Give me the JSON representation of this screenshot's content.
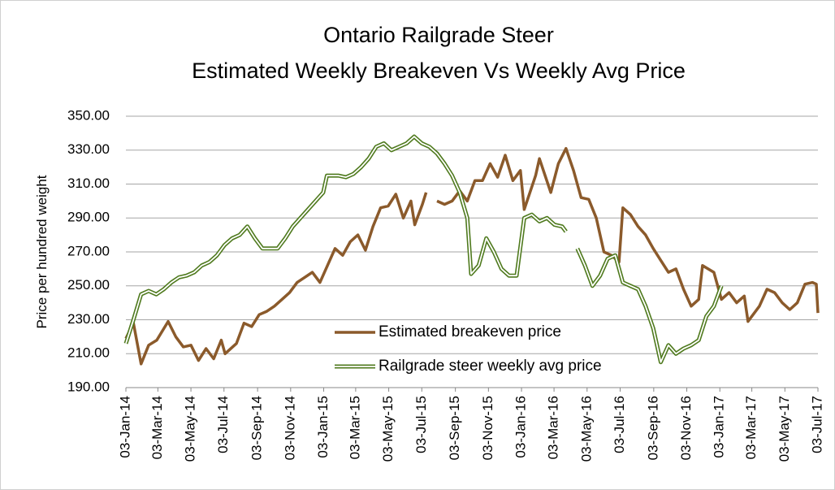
{
  "chart_data": {
    "type": "line",
    "title": [
      "Ontario Railgrade Steer",
      "Estimated Weekly Breakeven Vs Weekly Avg Price"
    ],
    "ylabel": "Price per hundred weight",
    "ylim": [
      190,
      350
    ],
    "yticks": [
      {
        "value": 190,
        "label": "190.00"
      },
      {
        "value": 210,
        "label": "210.00"
      },
      {
        "value": 230,
        "label": "230.00"
      },
      {
        "value": 250,
        "label": "250.00"
      },
      {
        "value": 270,
        "label": "270.00"
      },
      {
        "value": 290,
        "label": "290.00"
      },
      {
        "value": 310,
        "label": "310.00"
      },
      {
        "value": 330,
        "label": "330.00"
      },
      {
        "value": 350,
        "label": "350.00"
      }
    ],
    "xlim": [
      "2014-01-03",
      "2017-07-03"
    ],
    "xticks": [
      {
        "value": "2014-01-03",
        "label": "03-Jan-14"
      },
      {
        "value": "2014-03-03",
        "label": "03-Mar-14"
      },
      {
        "value": "2014-05-03",
        "label": "03-May-14"
      },
      {
        "value": "2014-07-03",
        "label": "03-Jul-14"
      },
      {
        "value": "2014-09-03",
        "label": "03-Sep-14"
      },
      {
        "value": "2014-11-03",
        "label": "03-Nov-14"
      },
      {
        "value": "2015-01-03",
        "label": "03-Jan-15"
      },
      {
        "value": "2015-03-03",
        "label": "03-Mar-15"
      },
      {
        "value": "2015-05-03",
        "label": "03-May-15"
      },
      {
        "value": "2015-07-03",
        "label": "03-Jul-15"
      },
      {
        "value": "2015-09-03",
        "label": "03-Sep-15"
      },
      {
        "value": "2015-11-03",
        "label": "03-Nov-15"
      },
      {
        "value": "2016-01-03",
        "label": "03-Jan-16"
      },
      {
        "value": "2016-03-03",
        "label": "03-Mar-16"
      },
      {
        "value": "2016-05-03",
        "label": "03-May-16"
      },
      {
        "value": "2016-07-03",
        "label": "03-Jul-16"
      },
      {
        "value": "2016-09-03",
        "label": "03-Sep-16"
      },
      {
        "value": "2016-11-03",
        "label": "03-Nov-16"
      },
      {
        "value": "2017-01-03",
        "label": "03-Jan-17"
      },
      {
        "value": "2017-03-03",
        "label": "03-Mar-17"
      },
      {
        "value": "2017-05-03",
        "label": "03-May-17"
      },
      {
        "value": "2017-07-03",
        "label": "03-Jul-17"
      }
    ],
    "grid": true,
    "legend": "center",
    "series": [
      {
        "name": "Estimated breakeven price",
        "color": "#8b5a2b",
        "style": "solid",
        "x": [
          "2014-01-03",
          "2014-01-17",
          "2014-01-31",
          "2014-02-14",
          "2014-03-01",
          "2014-03-22",
          "2014-04-05",
          "2014-04-19",
          "2014-05-03",
          "2014-05-17",
          "2014-05-31",
          "2014-06-14",
          "2014-06-28",
          "2014-07-05",
          "2014-07-26",
          "2014-08-09",
          "2014-08-23",
          "2014-09-06",
          "2014-09-20",
          "2014-10-04",
          "2014-10-18",
          "2014-11-01",
          "2014-11-15",
          "2014-11-29",
          "2014-12-13",
          "2014-12-27",
          "2015-01-10",
          "2015-01-24",
          "2015-02-07",
          "2015-02-21",
          "2015-03-07",
          "2015-03-21",
          "2015-04-04",
          "2015-04-18",
          "2015-05-02",
          "2015-05-16",
          "2015-05-30",
          "2015-06-13",
          "2015-06-20",
          "2015-07-04",
          "2015-07-11",
          "2015-07-24",
          "2015-07-31",
          "2015-08-14",
          "2015-08-28",
          "2015-09-11",
          "2015-09-25",
          "2015-10-09",
          "2015-10-23",
          "2015-11-06",
          "2015-11-20",
          "2015-12-04",
          "2015-12-18",
          "2016-01-01",
          "2016-01-08",
          "2016-01-29",
          "2016-02-05",
          "2016-02-26",
          "2016-03-11",
          "2016-03-25",
          "2016-04-08",
          "2016-04-22",
          "2016-05-06",
          "2016-05-20",
          "2016-06-03",
          "2016-06-17",
          "2016-07-01",
          "2016-07-08",
          "2016-07-22",
          "2016-08-05",
          "2016-08-19",
          "2016-09-02",
          "2016-09-16",
          "2016-09-30",
          "2016-10-14",
          "2016-10-28",
          "2016-11-11",
          "2016-11-25",
          "2016-12-02",
          "2016-12-23",
          "2017-01-06",
          "2017-01-20",
          "2017-02-03",
          "2017-02-17",
          "2017-02-24",
          "2017-03-17",
          "2017-03-31",
          "2017-04-14",
          "2017-04-28",
          "2017-05-12",
          "2017-05-26",
          "2017-06-09",
          "2017-06-23",
          "2017-06-30",
          "2017-07-03"
        ],
        "values": [
          219,
          228,
          204,
          215,
          218,
          229,
          220,
          214,
          215,
          206,
          213,
          207,
          218,
          210,
          216,
          228,
          226,
          233,
          235,
          238,
          242,
          246,
          252,
          255,
          258,
          252,
          262,
          272,
          268,
          276,
          280,
          271,
          285,
          296,
          297,
          304,
          290,
          300,
          286,
          298,
          305,
          null,
          300,
          298,
          300,
          306,
          300,
          312,
          312,
          322,
          314,
          327,
          312,
          318,
          295,
          315,
          325,
          305,
          322,
          331,
          318,
          302,
          301,
          290,
          270,
          268,
          264,
          296,
          292,
          285,
          280,
          272,
          265,
          258,
          260,
          248,
          238,
          242,
          262,
          258,
          242,
          246,
          240,
          244,
          229,
          238,
          248,
          246,
          240,
          236,
          240,
          251,
          252,
          251,
          234
        ]
      },
      {
        "name": "Railgrade steer weekly avg price",
        "color": "#4f7a1e",
        "style": "double",
        "x": [
          "2014-01-03",
          "2014-01-17",
          "2014-01-31",
          "2014-02-14",
          "2014-02-28",
          "2014-03-14",
          "2014-03-28",
          "2014-04-11",
          "2014-04-25",
          "2014-05-09",
          "2014-05-23",
          "2014-06-06",
          "2014-06-20",
          "2014-07-04",
          "2014-07-18",
          "2014-08-01",
          "2014-08-15",
          "2014-08-29",
          "2014-09-12",
          "2014-09-26",
          "2014-10-10",
          "2014-10-24",
          "2014-11-07",
          "2014-11-21",
          "2014-12-05",
          "2014-12-19",
          "2015-01-02",
          "2015-01-09",
          "2015-01-30",
          "2015-02-13",
          "2015-02-27",
          "2015-03-13",
          "2015-03-27",
          "2015-04-10",
          "2015-04-24",
          "2015-05-08",
          "2015-05-22",
          "2015-06-05",
          "2015-06-19",
          "2015-07-03",
          "2015-07-17",
          "2015-07-31",
          "2015-08-14",
          "2015-08-28",
          "2015-09-11",
          "2015-09-25",
          "2015-10-02",
          "2015-10-16",
          "2015-10-30",
          "2015-11-13",
          "2015-11-27",
          "2015-12-11",
          "2015-12-25",
          "2016-01-08",
          "2016-01-22",
          "2016-02-05",
          "2016-02-19",
          "2016-03-04",
          "2016-03-18",
          "2016-03-25",
          "2016-04-08",
          "2016-04-15",
          "2016-04-29",
          "2016-05-13",
          "2016-05-27",
          "2016-06-10",
          "2016-06-24",
          "2016-07-08",
          "2016-07-22",
          "2016-08-05",
          "2016-08-19",
          "2016-09-02",
          "2016-09-16",
          "2016-09-30",
          "2016-10-14",
          "2016-10-28",
          "2016-11-11",
          "2016-11-25",
          "2016-12-09",
          "2016-12-23",
          "2017-01-06"
        ],
        "values": [
          216,
          230,
          245,
          247,
          245,
          248,
          252,
          255,
          256,
          258,
          262,
          264,
          268,
          274,
          278,
          280,
          285,
          278,
          272,
          272,
          272,
          278,
          285,
          290,
          295,
          300,
          305,
          315,
          315,
          314,
          316,
          320,
          325,
          332,
          334,
          330,
          332,
          334,
          338,
          334,
          332,
          328,
          322,
          315,
          305,
          290,
          257,
          262,
          278,
          270,
          260,
          256,
          256,
          290,
          292,
          288,
          290,
          286,
          285,
          282,
          null,
          272,
          262,
          250,
          256,
          266,
          268,
          252,
          250,
          248,
          238,
          225,
          205,
          215,
          210,
          213,
          215,
          218,
          232,
          238,
          250
        ]
      }
    ]
  }
}
